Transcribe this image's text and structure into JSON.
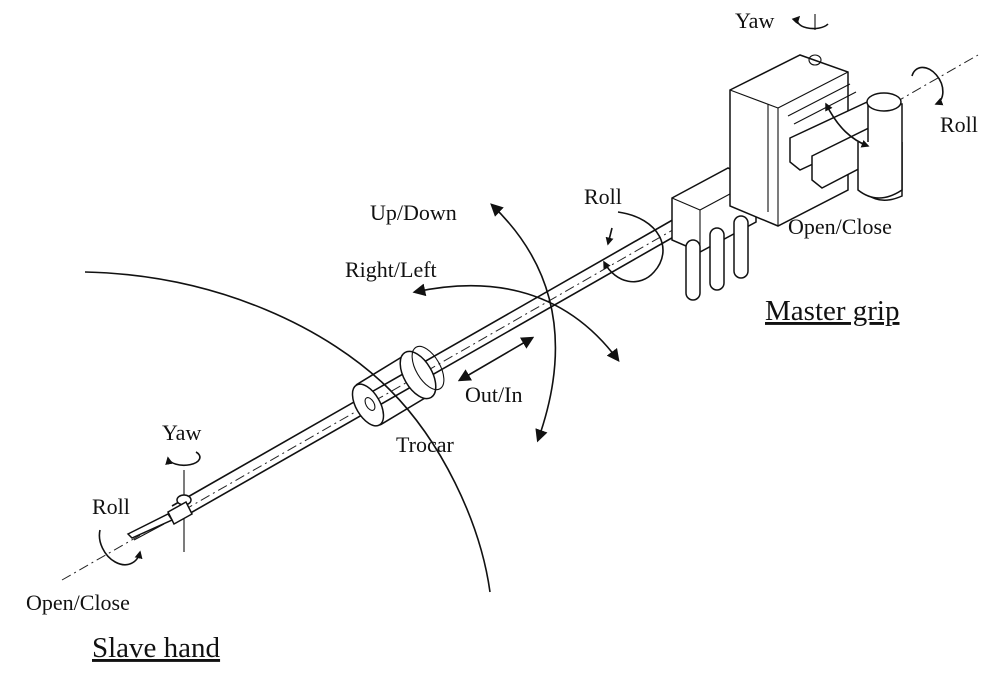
{
  "labels": {
    "master_yaw": "Yaw",
    "master_roll": "Roll",
    "shaft_roll": "Roll",
    "master_open_close": "Open/Close",
    "master_grip": "Master grip",
    "up_down": "Up/Down",
    "right_left": "Right/Left",
    "out_in": "Out/In",
    "trocar": "Trocar",
    "slave_yaw": "Yaw",
    "slave_roll": "Roll",
    "slave_open_close": "Open/Close",
    "slave_hand": "Slave hand"
  }
}
